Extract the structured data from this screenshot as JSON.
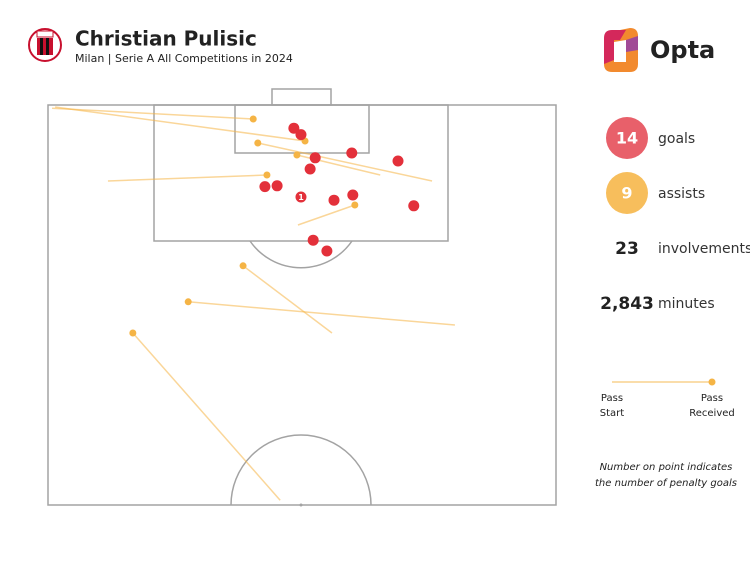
{
  "chart_data": {
    "type": "scatter",
    "title": "Christian Pulisic",
    "subtitle": "Milan | Serie A All Competitions in 2024",
    "brand": "Opta",
    "xlim": [
      0,
      100
    ],
    "ylim": [
      50,
      100
    ],
    "goals": {
      "color": "#e3303a",
      "x": [
        48.4,
        49.8,
        52.6,
        51.6,
        59.8,
        68.9,
        42.7,
        45.1,
        49.8,
        56.3,
        60.0,
        72.0,
        52.2,
        54.9
      ],
      "y": [
        97.1,
        96.3,
        93.4,
        92.0,
        94.0,
        93.0,
        89.8,
        89.9,
        88.5,
        88.1,
        88.75,
        87.4,
        83.1,
        81.75
      ],
      "penalty": [
        0,
        0,
        0,
        0,
        0,
        0,
        0,
        0,
        1,
        0,
        0,
        0,
        0,
        0
      ]
    },
    "assists": {
      "color": "#f5b445",
      "start_x": [
        0.8,
        1.4,
        75.6,
        65.4,
        11.8,
        49.2,
        55.9,
        80.1,
        45.7
      ],
      "start_y": [
        99.6,
        99.75,
        90.5,
        91.25,
        90.5,
        85.0,
        71.5,
        72.5,
        50.6
      ],
      "end_x": [
        40.4,
        50.6,
        41.3,
        49.0,
        43.1,
        60.4,
        38.4,
        27.6,
        16.7
      ],
      "end_y": [
        98.25,
        95.5,
        95.25,
        93.75,
        91.25,
        87.5,
        79.9,
        75.4,
        71.5
      ]
    },
    "stats": [
      {
        "value": "14",
        "label": "goals",
        "color": "#e8606a"
      },
      {
        "value": "9",
        "label": "assists",
        "color": "#f7be5c"
      },
      {
        "value": "23",
        "label": "involvements"
      },
      {
        "value": "2,843",
        "label": "minutes"
      }
    ],
    "legend": {
      "start": [
        "Pass",
        "Start"
      ],
      "end": [
        "Pass",
        "Received"
      ]
    },
    "note": [
      "Number on point indicates",
      "the number of penalty goals"
    ]
  }
}
